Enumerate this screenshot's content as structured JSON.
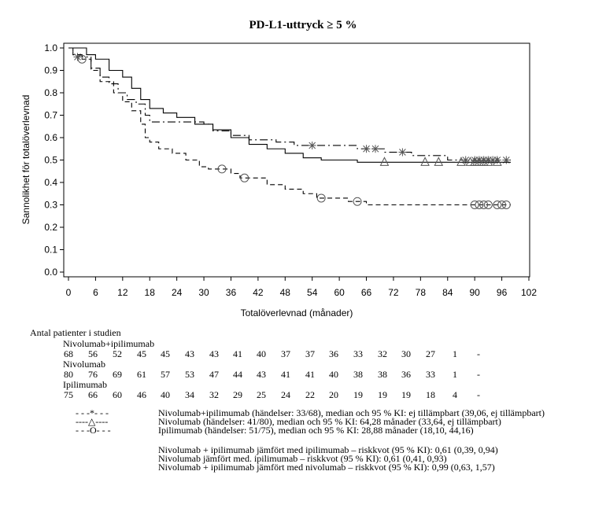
{
  "chart_data": {
    "type": "line",
    "title": "PD-L1-uttryck ≥ 5 %",
    "xlabel": "Totalöverlevnad (månader)",
    "ylabel": "Sannolikhet för totalöverlevnad",
    "xlim": [
      0,
      102
    ],
    "ylim": [
      0,
      1
    ],
    "xticks": [
      0,
      6,
      12,
      18,
      24,
      30,
      36,
      42,
      48,
      54,
      60,
      66,
      72,
      78,
      84,
      90,
      96,
      102
    ],
    "yticks": [
      "0.0",
      "0.1",
      "0.2",
      "0.3",
      "0.4",
      "0.5",
      "0.6",
      "0.7",
      "0.8",
      "0.9",
      "1.0"
    ],
    "series": [
      {
        "name": "Nivolumab+ipilimumab",
        "style": "dashdot",
        "marker": "star",
        "steps": [
          [
            0,
            1
          ],
          [
            1,
            0.97
          ],
          [
            3,
            0.96
          ],
          [
            5,
            0.91
          ],
          [
            7,
            0.87
          ],
          [
            9,
            0.84
          ],
          [
            11,
            0.8
          ],
          [
            13,
            0.77
          ],
          [
            15,
            0.75
          ],
          [
            17,
            0.7
          ],
          [
            18,
            0.67
          ],
          [
            30,
            0.66
          ],
          [
            32,
            0.63
          ],
          [
            36,
            0.61
          ],
          [
            40,
            0.59
          ],
          [
            46,
            0.58
          ],
          [
            50,
            0.565
          ],
          [
            60,
            0.565
          ],
          [
            64,
            0.55
          ],
          [
            70,
            0.535
          ],
          [
            76,
            0.52
          ],
          [
            84,
            0.5
          ],
          [
            98,
            0.5
          ]
        ],
        "censored": [
          [
            2,
            0.96
          ],
          [
            54,
            0.565
          ],
          [
            66,
            0.55
          ],
          [
            68,
            0.55
          ],
          [
            74,
            0.535
          ],
          [
            88,
            0.5
          ],
          [
            90,
            0.5
          ],
          [
            91,
            0.5
          ],
          [
            92,
            0.5
          ],
          [
            93,
            0.5
          ],
          [
            94,
            0.5
          ],
          [
            95,
            0.5
          ],
          [
            97,
            0.5
          ]
        ]
      },
      {
        "name": "Nivolumab",
        "style": "solid",
        "marker": "triangle",
        "steps": [
          [
            0,
            1
          ],
          [
            4,
            0.97
          ],
          [
            6,
            0.95
          ],
          [
            9,
            0.9
          ],
          [
            12,
            0.87
          ],
          [
            14,
            0.82
          ],
          [
            16,
            0.77
          ],
          [
            18,
            0.73
          ],
          [
            21,
            0.71
          ],
          [
            24,
            0.69
          ],
          [
            28,
            0.66
          ],
          [
            32,
            0.635
          ],
          [
            36,
            0.6
          ],
          [
            40,
            0.57
          ],
          [
            44,
            0.55
          ],
          [
            48,
            0.53
          ],
          [
            52,
            0.51
          ],
          [
            56,
            0.5
          ],
          [
            64,
            0.49
          ],
          [
            98,
            0.49
          ]
        ],
        "censored": [
          [
            70,
            0.49
          ],
          [
            79,
            0.49
          ],
          [
            82,
            0.49
          ],
          [
            87,
            0.49
          ],
          [
            89,
            0.49
          ],
          [
            90,
            0.49
          ],
          [
            91,
            0.49
          ],
          [
            92,
            0.49
          ],
          [
            93,
            0.49
          ],
          [
            95,
            0.49
          ]
        ]
      },
      {
        "name": "Ipilimumab",
        "style": "dashed",
        "marker": "circle",
        "steps": [
          [
            0,
            1
          ],
          [
            1,
            0.97
          ],
          [
            3,
            0.95
          ],
          [
            5,
            0.9
          ],
          [
            7,
            0.85
          ],
          [
            10,
            0.8
          ],
          [
            12,
            0.76
          ],
          [
            14,
            0.72
          ],
          [
            16,
            0.66
          ],
          [
            17,
            0.6
          ],
          [
            18,
            0.58
          ],
          [
            20,
            0.55
          ],
          [
            23,
            0.53
          ],
          [
            26,
            0.5
          ],
          [
            29,
            0.47
          ],
          [
            31,
            0.46
          ],
          [
            36,
            0.44
          ],
          [
            38,
            0.42
          ],
          [
            44,
            0.39
          ],
          [
            48,
            0.37
          ],
          [
            52,
            0.35
          ],
          [
            55,
            0.33
          ],
          [
            62,
            0.315
          ],
          [
            66,
            0.3
          ],
          [
            98,
            0.3
          ]
        ],
        "censored": [
          [
            3,
            0.95
          ],
          [
            34,
            0.46
          ],
          [
            39,
            0.42
          ],
          [
            56,
            0.33
          ],
          [
            64,
            0.315
          ],
          [
            90,
            0.3
          ],
          [
            91,
            0.3
          ],
          [
            92,
            0.3
          ],
          [
            93,
            0.3
          ],
          [
            95,
            0.3
          ],
          [
            96,
            0.3
          ],
          [
            97,
            0.3
          ]
        ]
      }
    ]
  },
  "risk_table": {
    "title": "Antal patienter i studien",
    "groups": [
      {
        "name": "Nivolumab+ipilimumab",
        "values": [
          "68",
          "56",
          "52",
          "45",
          "45",
          "43",
          "43",
          "41",
          "40",
          "37",
          "37",
          "36",
          "33",
          "32",
          "30",
          "27",
          "1",
          "-"
        ]
      },
      {
        "name": "Nivolumab",
        "values": [
          "80",
          "76",
          "69",
          "61",
          "57",
          "53",
          "47",
          "44",
          "43",
          "41",
          "41",
          "40",
          "38",
          "38",
          "36",
          "33",
          "1",
          "-"
        ]
      },
      {
        "name": "Ipilimumab",
        "values": [
          "75",
          "66",
          "60",
          "46",
          "40",
          "34",
          "32",
          "29",
          "25",
          "24",
          "22",
          "20",
          "19",
          "19",
          "19",
          "18",
          "4",
          "-"
        ]
      }
    ]
  },
  "legend": [
    {
      "symbol": "- - -*- - -",
      "text": "Nivolumab+ipilimumab (händelser: 33/68), median och 95 % KI: ej tillämpbart (39,06, ej tillämpbart)"
    },
    {
      "symbol": "----△----",
      "text": "Nivolumab (händelser: 41/80), median och 95 % KI: 64,28 månader (33,64, ej tillämpbart)"
    },
    {
      "symbol": "- - -O- - -",
      "text": "Ipilimumab (händelser: 51/75), median och 95 % KI: 28,88 månader (18,10, 44,16)"
    }
  ],
  "hazard_ratios": [
    "Nivolumab + ipilimumab jämfört med ipilimumab – riskkvot (95 % KI): 0,61 (0,39, 0,94)",
    "Nivolumab jämfört med. ipilimumab – riskkvot (95 % KI): 0,61 (0,41, 0,93)",
    "Nivolumab + ipilimumab jämfört med nivolumab – riskkvot (95 % KI): 0,99 (0,63, 1,57)"
  ]
}
